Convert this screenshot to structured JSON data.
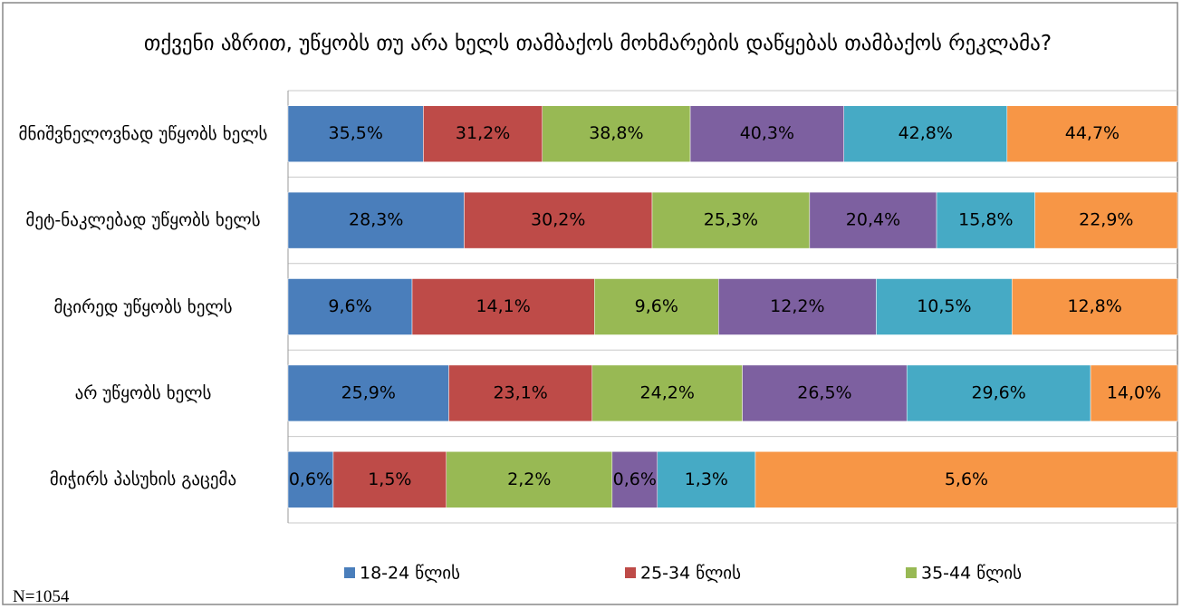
{
  "chart_data": {
    "type": "bar",
    "orientation": "horizontal",
    "stacked": "percent",
    "title": "თქვენი აზრით, უწყობს თუ არა ხელს თამბაქოს მოხმარების დაწყებას თამბაქოს რეკლამა?",
    "note": "N=1054",
    "categories": [
      "მნიშვნელოვნად უწყობს ხელს",
      "მეტ-ნაკლებად უწყობს ხელს",
      "მცირედ უწყობს ხელს",
      "არ უწყობს ხელს",
      "მიჭირს პასუხის გაცემა"
    ],
    "series": [
      {
        "name": "18-24 წლის",
        "color": "#4a7ebb",
        "values": [
          35.5,
          28.3,
          9.6,
          25.9,
          0.6
        ],
        "value_labels": [
          "35,5%",
          "28,3%",
          "9,6%",
          "25,9%",
          "0,6%"
        ]
      },
      {
        "name": "25-34 წლის",
        "color": "#be4b48",
        "values": [
          31.2,
          30.2,
          14.1,
          23.1,
          1.5
        ],
        "value_labels": [
          "31,2%",
          "30,2%",
          "14,1%",
          "23,1%",
          "1,5%"
        ]
      },
      {
        "name": "35-44 წლის",
        "color": "#98b954",
        "values": [
          38.8,
          25.3,
          9.6,
          24.2,
          2.2
        ],
        "value_labels": [
          "38,8%",
          "25,3%",
          "9,6%",
          "24,2%",
          "2,2%"
        ]
      },
      {
        "color": "#7d60a0",
        "values": [
          40.3,
          20.4,
          12.2,
          26.5,
          0.6
        ],
        "value_labels": [
          "40,3%",
          "20,4%",
          "12,2%",
          "26,5%",
          "0,6%"
        ]
      },
      {
        "color": "#46aac5",
        "values": [
          42.8,
          15.8,
          10.5,
          29.6,
          1.3
        ],
        "value_labels": [
          "42,8%",
          "15,8%",
          "10,5%",
          "29,6%",
          "1,3%"
        ]
      },
      {
        "color": "#f79646",
        "values": [
          44.7,
          22.9,
          12.8,
          14.0,
          5.6
        ],
        "value_labels": [
          "44,7%",
          "22,9%",
          "12,8%",
          "14,0%",
          "5,6%"
        ]
      }
    ],
    "legend": "bottom"
  }
}
